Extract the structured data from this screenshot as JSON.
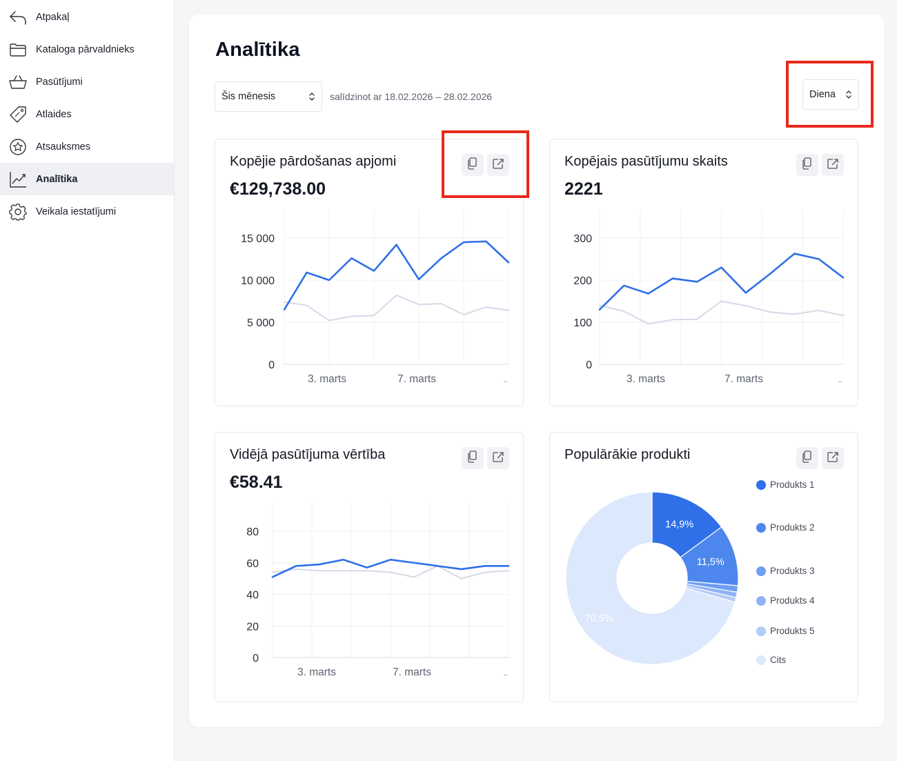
{
  "sidebar": {
    "items": [
      {
        "label": "Atpakaļ",
        "icon": "back-arrow-icon"
      },
      {
        "label": "Kataloga pārvaldnieks",
        "icon": "folder-icon"
      },
      {
        "label": "Pasūtījumi",
        "icon": "basket-icon"
      },
      {
        "label": "Atlaides",
        "icon": "discount-tag-icon"
      },
      {
        "label": "Atsauksmes",
        "icon": "star-badge-icon"
      },
      {
        "label": "Analītika",
        "icon": "chart-line-icon",
        "active": true
      },
      {
        "label": "Veikala iestatījumi",
        "icon": "gear-icon"
      }
    ]
  },
  "page": {
    "title": "Analītika",
    "period_select": "Šis mēnesis",
    "compare_text": "salīdzinot ar 18.02.2026 – 28.02.2026",
    "granularity_select": "Diena"
  },
  "colors": {
    "accent": "#2f6fe8",
    "compare_line": "#d3dae6",
    "highlight": "#e8281b"
  },
  "cards": [
    {
      "title": "Kopējie pārdošanas apjomi",
      "value": "€129,738.00",
      "copy_icon": "copy-icon",
      "share_icon": "share-icon"
    },
    {
      "title": "Kopējais pasūtījumu skaits",
      "value": "2221",
      "copy_icon": "copy-icon",
      "share_icon": "share-icon"
    },
    {
      "title": "Vidējā pasūtījuma vērtība",
      "value": "€58.41",
      "copy_icon": "copy-icon",
      "share_icon": "share-icon"
    },
    {
      "title": "Populārākie produkti",
      "value": "",
      "copy_icon": "copy-icon",
      "share_icon": "share-icon"
    }
  ],
  "chart_data": [
    {
      "type": "line",
      "title": "Kopējie pārdošanas apjomi",
      "x_tick_labels": [
        "3. marts",
        "7. marts",
        ".."
      ],
      "y_tick_labels": [
        "0",
        "5 000",
        "10 000",
        "15 000"
      ],
      "ylim": [
        0,
        15000
      ],
      "grid": true,
      "series": [
        {
          "role": "current",
          "values": [
            6500,
            10900,
            10000,
            12600,
            11100,
            14200,
            10100,
            12600,
            14500,
            14600,
            12100
          ]
        },
        {
          "role": "previous",
          "values": [
            7400,
            7000,
            5200,
            5700,
            5800,
            8200,
            7100,
            7200,
            5900,
            6800,
            6400
          ]
        }
      ]
    },
    {
      "type": "line",
      "title": "Kopējais pasūtījumu skaits",
      "x_tick_labels": [
        "3. marts",
        "7. marts",
        ".."
      ],
      "y_tick_labels": [
        "0",
        "100",
        "200",
        "300"
      ],
      "ylim": [
        0,
        300
      ],
      "grid": true,
      "series": [
        {
          "role": "current",
          "values": [
            130,
            187,
            168,
            204,
            196,
            230,
            170,
            215,
            263,
            250,
            206
          ]
        },
        {
          "role": "previous",
          "values": [
            140,
            126,
            96,
            106,
            107,
            150,
            139,
            124,
            119,
            128,
            116
          ]
        }
      ]
    },
    {
      "type": "line",
      "title": "Vidējā pasūtījuma vērtība",
      "x_tick_labels": [
        "3. marts",
        "7. marts",
        ".."
      ],
      "y_tick_labels": [
        "0",
        "20",
        "40",
        "60",
        "80"
      ],
      "ylim": [
        0,
        80
      ],
      "grid": true,
      "series": [
        {
          "role": "current",
          "values": [
            51,
            58,
            59,
            62,
            57,
            62,
            60,
            58,
            56,
            58,
            58
          ]
        },
        {
          "role": "previous",
          "values": [
            54,
            56,
            55,
            55,
            55,
            54,
            51,
            58,
            50,
            54,
            55
          ]
        }
      ]
    },
    {
      "type": "pie",
      "title": "Populārākie produkti",
      "donut": true,
      "slices": [
        {
          "label": "Produkts 1",
          "value": 14.9,
          "display": "14,9%",
          "color": "#2f6fe8"
        },
        {
          "label": "Produkts 2",
          "value": 11.5,
          "display": "11,5%",
          "color": "#4d87ee"
        },
        {
          "label": "Produkts 3",
          "value": 1.2,
          "display": "",
          "color": "#6d9ef2"
        },
        {
          "label": "Produkts 4",
          "value": 1.0,
          "display": "",
          "color": "#8fb4f5"
        },
        {
          "label": "Produkts 5",
          "value": 0.9,
          "display": "",
          "color": "#b2cbf8"
        },
        {
          "label": "Cits",
          "value": 70.5,
          "display": "70,5%",
          "color": "#dce8fc"
        }
      ],
      "legend": "right"
    }
  ]
}
